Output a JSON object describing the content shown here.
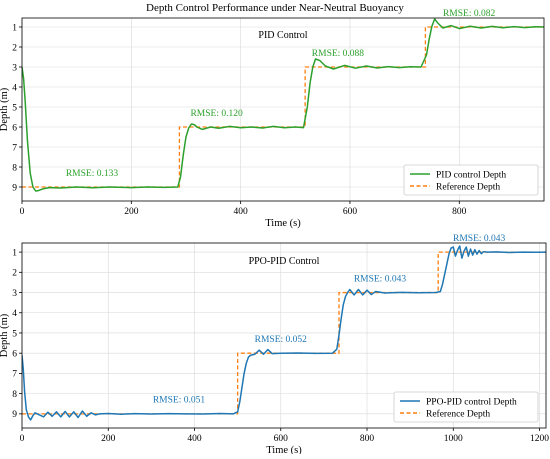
{
  "figure_title": "Depth Control Performance under Near-Neutral Buoyancy",
  "colors": {
    "pid": "#2ca02c",
    "ppo": "#1f77b4",
    "reference": "#ff7f0e",
    "grid": "#d9d9d9"
  },
  "chart_data": [
    {
      "type": "line",
      "title": "PID Control",
      "xlabel": "Time (s)",
      "ylabel": "Depth (m)",
      "xlim": [
        0,
        955
      ],
      "ylim": [
        9.7,
        0.55
      ],
      "y_inverted": true,
      "xticks": [
        0,
        200,
        400,
        600,
        800
      ],
      "yticks": [
        1,
        2,
        3,
        4,
        5,
        6,
        7,
        8,
        9
      ],
      "grid": true,
      "legend_position": "lower-right",
      "series": [
        {
          "name": "PID control Depth",
          "color": "#2ca02c",
          "style": "solid",
          "x": [
            0,
            3,
            6,
            10,
            15,
            20,
            25,
            30,
            40,
            50,
            70,
            100,
            130,
            160,
            200,
            230,
            260,
            285,
            290,
            295,
            300,
            305,
            310,
            315,
            320,
            330,
            345,
            360,
            380,
            400,
            420,
            440,
            460,
            480,
            500,
            515,
            522,
            527,
            532,
            537,
            545,
            555,
            570,
            590,
            610,
            630,
            650,
            670,
            690,
            710,
            730,
            740,
            745,
            750,
            755,
            760,
            770,
            785,
            800,
            820,
            840,
            860,
            880,
            900,
            920,
            940,
            955
          ],
          "y": [
            3.0,
            3.6,
            4.8,
            6.7,
            8.3,
            9.0,
            9.2,
            9.18,
            9.08,
            9.03,
            9.05,
            9.0,
            9.04,
            9.0,
            9.03,
            9.0,
            9.02,
            9.0,
            8.5,
            7.4,
            6.5,
            6.05,
            5.85,
            5.88,
            6.0,
            6.12,
            6.0,
            6.06,
            5.97,
            6.04,
            6.0,
            6.05,
            5.97,
            6.04,
            6.0,
            6.03,
            5.0,
            3.8,
            3.0,
            2.6,
            2.68,
            2.95,
            3.1,
            2.92,
            3.06,
            2.95,
            3.05,
            2.98,
            3.03,
            2.99,
            3.0,
            2.4,
            1.6,
            0.95,
            0.6,
            0.78,
            1.05,
            0.93,
            1.08,
            0.96,
            1.05,
            0.97,
            1.04,
            0.98,
            1.03,
            0.99,
            1.0
          ]
        },
        {
          "name": "Reference Depth",
          "color": "#ff7f0e",
          "style": "dashed",
          "x": [
            0,
            288,
            288,
            518,
            518,
            738,
            738,
            955
          ],
          "y": [
            9,
            9,
            6,
            6,
            3,
            3,
            1,
            1
          ]
        }
      ],
      "annotations": [
        {
          "text": "RMSE: 0.133",
          "x": 128,
          "y": 8.45
        },
        {
          "text": "RMSE: 0.120",
          "x": 356,
          "y": 5.45
        },
        {
          "text": "RMSE: 0.088",
          "x": 578,
          "y": 2.45
        },
        {
          "text": "RMSE: 0.082",
          "x": 818,
          "y": 0.45
        }
      ]
    },
    {
      "type": "line",
      "title": "PPO-PID Control",
      "xlabel": "Time (s)",
      "ylabel": "Depth (m)",
      "xlim": [
        0,
        1215
      ],
      "ylim": [
        9.7,
        0.55
      ],
      "y_inverted": true,
      "xticks": [
        0,
        200,
        400,
        600,
        800,
        1000,
        1200
      ],
      "yticks": [
        1,
        2,
        3,
        4,
        5,
        6,
        7,
        8,
        9
      ],
      "grid": true,
      "legend_position": "lower-right",
      "series": [
        {
          "name": "PPO-PID control Depth",
          "color": "#1f77b4",
          "style": "solid",
          "x": [
            0,
            3,
            6,
            10,
            15,
            20,
            25,
            30,
            40,
            50,
            60,
            70,
            80,
            90,
            100,
            110,
            120,
            130,
            140,
            150,
            160,
            170,
            180,
            200,
            230,
            260,
            300,
            340,
            380,
            420,
            460,
            490,
            500,
            505,
            510,
            515,
            520,
            525,
            530,
            540,
            550,
            560,
            570,
            580,
            600,
            640,
            680,
            720,
            730,
            735,
            740,
            745,
            750,
            755,
            760,
            770,
            780,
            790,
            800,
            810,
            820,
            840,
            880,
            920,
            960,
            970,
            975,
            980,
            985,
            990,
            995,
            1000,
            1005,
            1010,
            1015,
            1020,
            1025,
            1030,
            1035,
            1040,
            1045,
            1050,
            1055,
            1060,
            1065,
            1070,
            1080,
            1100,
            1130,
            1160,
            1190,
            1215
          ],
          "y": [
            6.1,
            6.8,
            7.9,
            8.8,
            9.15,
            9.3,
            9.1,
            8.95,
            9.05,
            9.15,
            8.92,
            9.12,
            8.9,
            9.15,
            8.88,
            9.15,
            8.9,
            9.18,
            8.86,
            9.12,
            8.95,
            9.05,
            9.0,
            8.98,
            9.02,
            8.99,
            9.01,
            8.99,
            9.0,
            9.01,
            8.98,
            9.0,
            8.9,
            8.4,
            7.7,
            7.0,
            6.5,
            6.2,
            6.1,
            6.05,
            5.85,
            6.05,
            5.82,
            6.02,
            6.0,
            5.99,
            6.01,
            6.0,
            5.8,
            5.1,
            4.3,
            3.6,
            3.2,
            3.0,
            2.85,
            3.12,
            2.85,
            3.12,
            2.88,
            3.1,
            2.95,
            3.02,
            2.99,
            3.01,
            3.0,
            2.95,
            2.6,
            2.1,
            1.6,
            1.1,
            0.8,
            0.75,
            1.2,
            0.9,
            0.7,
            1.3,
            0.95,
            0.75,
            1.2,
            0.85,
            1.15,
            0.88,
            1.1,
            0.92,
            1.08,
            0.98,
            1.0,
            0.99,
            1.02,
            1.0,
            1.01,
            1.0
          ]
        },
        {
          "name": "Reference Depth",
          "color": "#ff7f0e",
          "style": "dashed",
          "x": [
            0,
            500,
            500,
            735,
            735,
            965,
            965,
            1215
          ],
          "y": [
            9,
            9,
            6,
            6,
            3,
            3,
            1,
            1
          ]
        }
      ],
      "annotations": [
        {
          "text": "RMSE: 0.051",
          "x": 364,
          "y": 8.45
        },
        {
          "text": "RMSE: 0.052",
          "x": 600,
          "y": 5.45
        },
        {
          "text": "RMSE: 0.043",
          "x": 830,
          "y": 2.45
        },
        {
          "text": "RMSE: 0.043",
          "x": 1060,
          "y": 0.45
        }
      ]
    }
  ]
}
